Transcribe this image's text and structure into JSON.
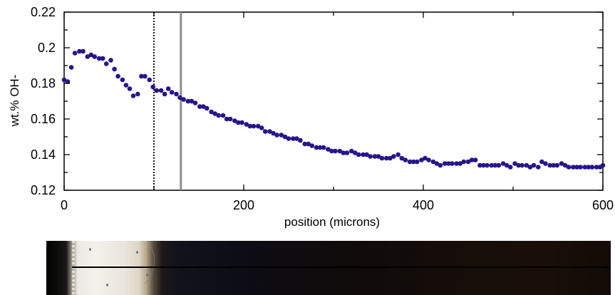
{
  "chart_data": {
    "type": "scatter",
    "xlabel": "position (microns)",
    "ylabel": "wt.% OH-",
    "xlim": [
      0,
      600
    ],
    "ylim": [
      0.12,
      0.22
    ],
    "x_ticks": [
      "0",
      "200",
      "400",
      "600"
    ],
    "y_ticks": [
      "0.12",
      "0.14",
      "0.16",
      "0.18",
      "0.2",
      "0.22"
    ],
    "grid": false,
    "marker_color": "#25168a",
    "vertical_lines": [
      {
        "x": 100,
        "style": "dotted",
        "color": "#000000"
      },
      {
        "x": 130,
        "style": "solid",
        "color": "#8c8c8c"
      }
    ],
    "points": [
      [
        0,
        0.182
      ],
      [
        4,
        0.181
      ],
      [
        8,
        0.189
      ],
      [
        12,
        0.197
      ],
      [
        17,
        0.198
      ],
      [
        21,
        0.198
      ],
      [
        26,
        0.195
      ],
      [
        30,
        0.196
      ],
      [
        34,
        0.195
      ],
      [
        39,
        0.194
      ],
      [
        43,
        0.194
      ],
      [
        47,
        0.191
      ],
      [
        52,
        0.193
      ],
      [
        56,
        0.188
      ],
      [
        60,
        0.184
      ],
      [
        65,
        0.182
      ],
      [
        69,
        0.179
      ],
      [
        73,
        0.177
      ],
      [
        77,
        0.173
      ],
      [
        82,
        0.174
      ],
      [
        86,
        0.184
      ],
      [
        90,
        0.184
      ],
      [
        95,
        0.182
      ],
      [
        99,
        0.178
      ],
      [
        103,
        0.176
      ],
      [
        108,
        0.176
      ],
      [
        112,
        0.174
      ],
      [
        116,
        0.177
      ],
      [
        120,
        0.175
      ],
      [
        125,
        0.174
      ],
      [
        129,
        0.172
      ],
      [
        133,
        0.171
      ],
      [
        138,
        0.17
      ],
      [
        142,
        0.17
      ],
      [
        146,
        0.169
      ],
      [
        151,
        0.167
      ],
      [
        155,
        0.167
      ],
      [
        159,
        0.166
      ],
      [
        164,
        0.164
      ],
      [
        168,
        0.163
      ],
      [
        172,
        0.162
      ],
      [
        177,
        0.162
      ],
      [
        181,
        0.16
      ],
      [
        185,
        0.16
      ],
      [
        190,
        0.159
      ],
      [
        194,
        0.158
      ],
      [
        198,
        0.158
      ],
      [
        203,
        0.157
      ],
      [
        207,
        0.156
      ],
      [
        211,
        0.156
      ],
      [
        216,
        0.156
      ],
      [
        220,
        0.155
      ],
      [
        224,
        0.153
      ],
      [
        229,
        0.153
      ],
      [
        233,
        0.152
      ],
      [
        237,
        0.151
      ],
      [
        242,
        0.151
      ],
      [
        246,
        0.15
      ],
      [
        250,
        0.149
      ],
      [
        255,
        0.149
      ],
      [
        259,
        0.149
      ],
      [
        263,
        0.148
      ],
      [
        268,
        0.146
      ],
      [
        272,
        0.146
      ],
      [
        276,
        0.145
      ],
      [
        281,
        0.144
      ],
      [
        285,
        0.144
      ],
      [
        289,
        0.144
      ],
      [
        294,
        0.143
      ],
      [
        298,
        0.142
      ],
      [
        302,
        0.142
      ],
      [
        307,
        0.142
      ],
      [
        311,
        0.141
      ],
      [
        315,
        0.141
      ],
      [
        320,
        0.142
      ],
      [
        324,
        0.141
      ],
      [
        328,
        0.14
      ],
      [
        333,
        0.14
      ],
      [
        337,
        0.14
      ],
      [
        341,
        0.139
      ],
      [
        346,
        0.139
      ],
      [
        350,
        0.139
      ],
      [
        354,
        0.138
      ],
      [
        359,
        0.138
      ],
      [
        363,
        0.138
      ],
      [
        367,
        0.139
      ],
      [
        372,
        0.14
      ],
      [
        376,
        0.138
      ],
      [
        380,
        0.137
      ],
      [
        385,
        0.136
      ],
      [
        389,
        0.136
      ],
      [
        393,
        0.136
      ],
      [
        398,
        0.137
      ],
      [
        402,
        0.138
      ],
      [
        406,
        0.137
      ],
      [
        411,
        0.136
      ],
      [
        415,
        0.135
      ],
      [
        419,
        0.134
      ],
      [
        424,
        0.135
      ],
      [
        428,
        0.135
      ],
      [
        432,
        0.135
      ],
      [
        437,
        0.135
      ],
      [
        441,
        0.135
      ],
      [
        445,
        0.136
      ],
      [
        450,
        0.136
      ],
      [
        454,
        0.137
      ],
      [
        458,
        0.137
      ],
      [
        463,
        0.134
      ],
      [
        467,
        0.134
      ],
      [
        471,
        0.134
      ],
      [
        476,
        0.134
      ],
      [
        480,
        0.134
      ],
      [
        484,
        0.134
      ],
      [
        489,
        0.135
      ],
      [
        493,
        0.134
      ],
      [
        497,
        0.133
      ],
      [
        502,
        0.135
      ],
      [
        506,
        0.134
      ],
      [
        510,
        0.134
      ],
      [
        515,
        0.134
      ],
      [
        519,
        0.133
      ],
      [
        523,
        0.134
      ],
      [
        528,
        0.133
      ],
      [
        532,
        0.136
      ],
      [
        536,
        0.135
      ],
      [
        541,
        0.134
      ],
      [
        545,
        0.134
      ],
      [
        549,
        0.134
      ],
      [
        554,
        0.135
      ],
      [
        558,
        0.134
      ],
      [
        562,
        0.133
      ],
      [
        567,
        0.133
      ],
      [
        571,
        0.133
      ],
      [
        575,
        0.133
      ],
      [
        580,
        0.133
      ],
      [
        584,
        0.133
      ],
      [
        588,
        0.133
      ],
      [
        593,
        0.133
      ],
      [
        597,
        0.133
      ],
      [
        600,
        0.134
      ]
    ]
  },
  "micrograph": {
    "icon": "transect-photo"
  }
}
